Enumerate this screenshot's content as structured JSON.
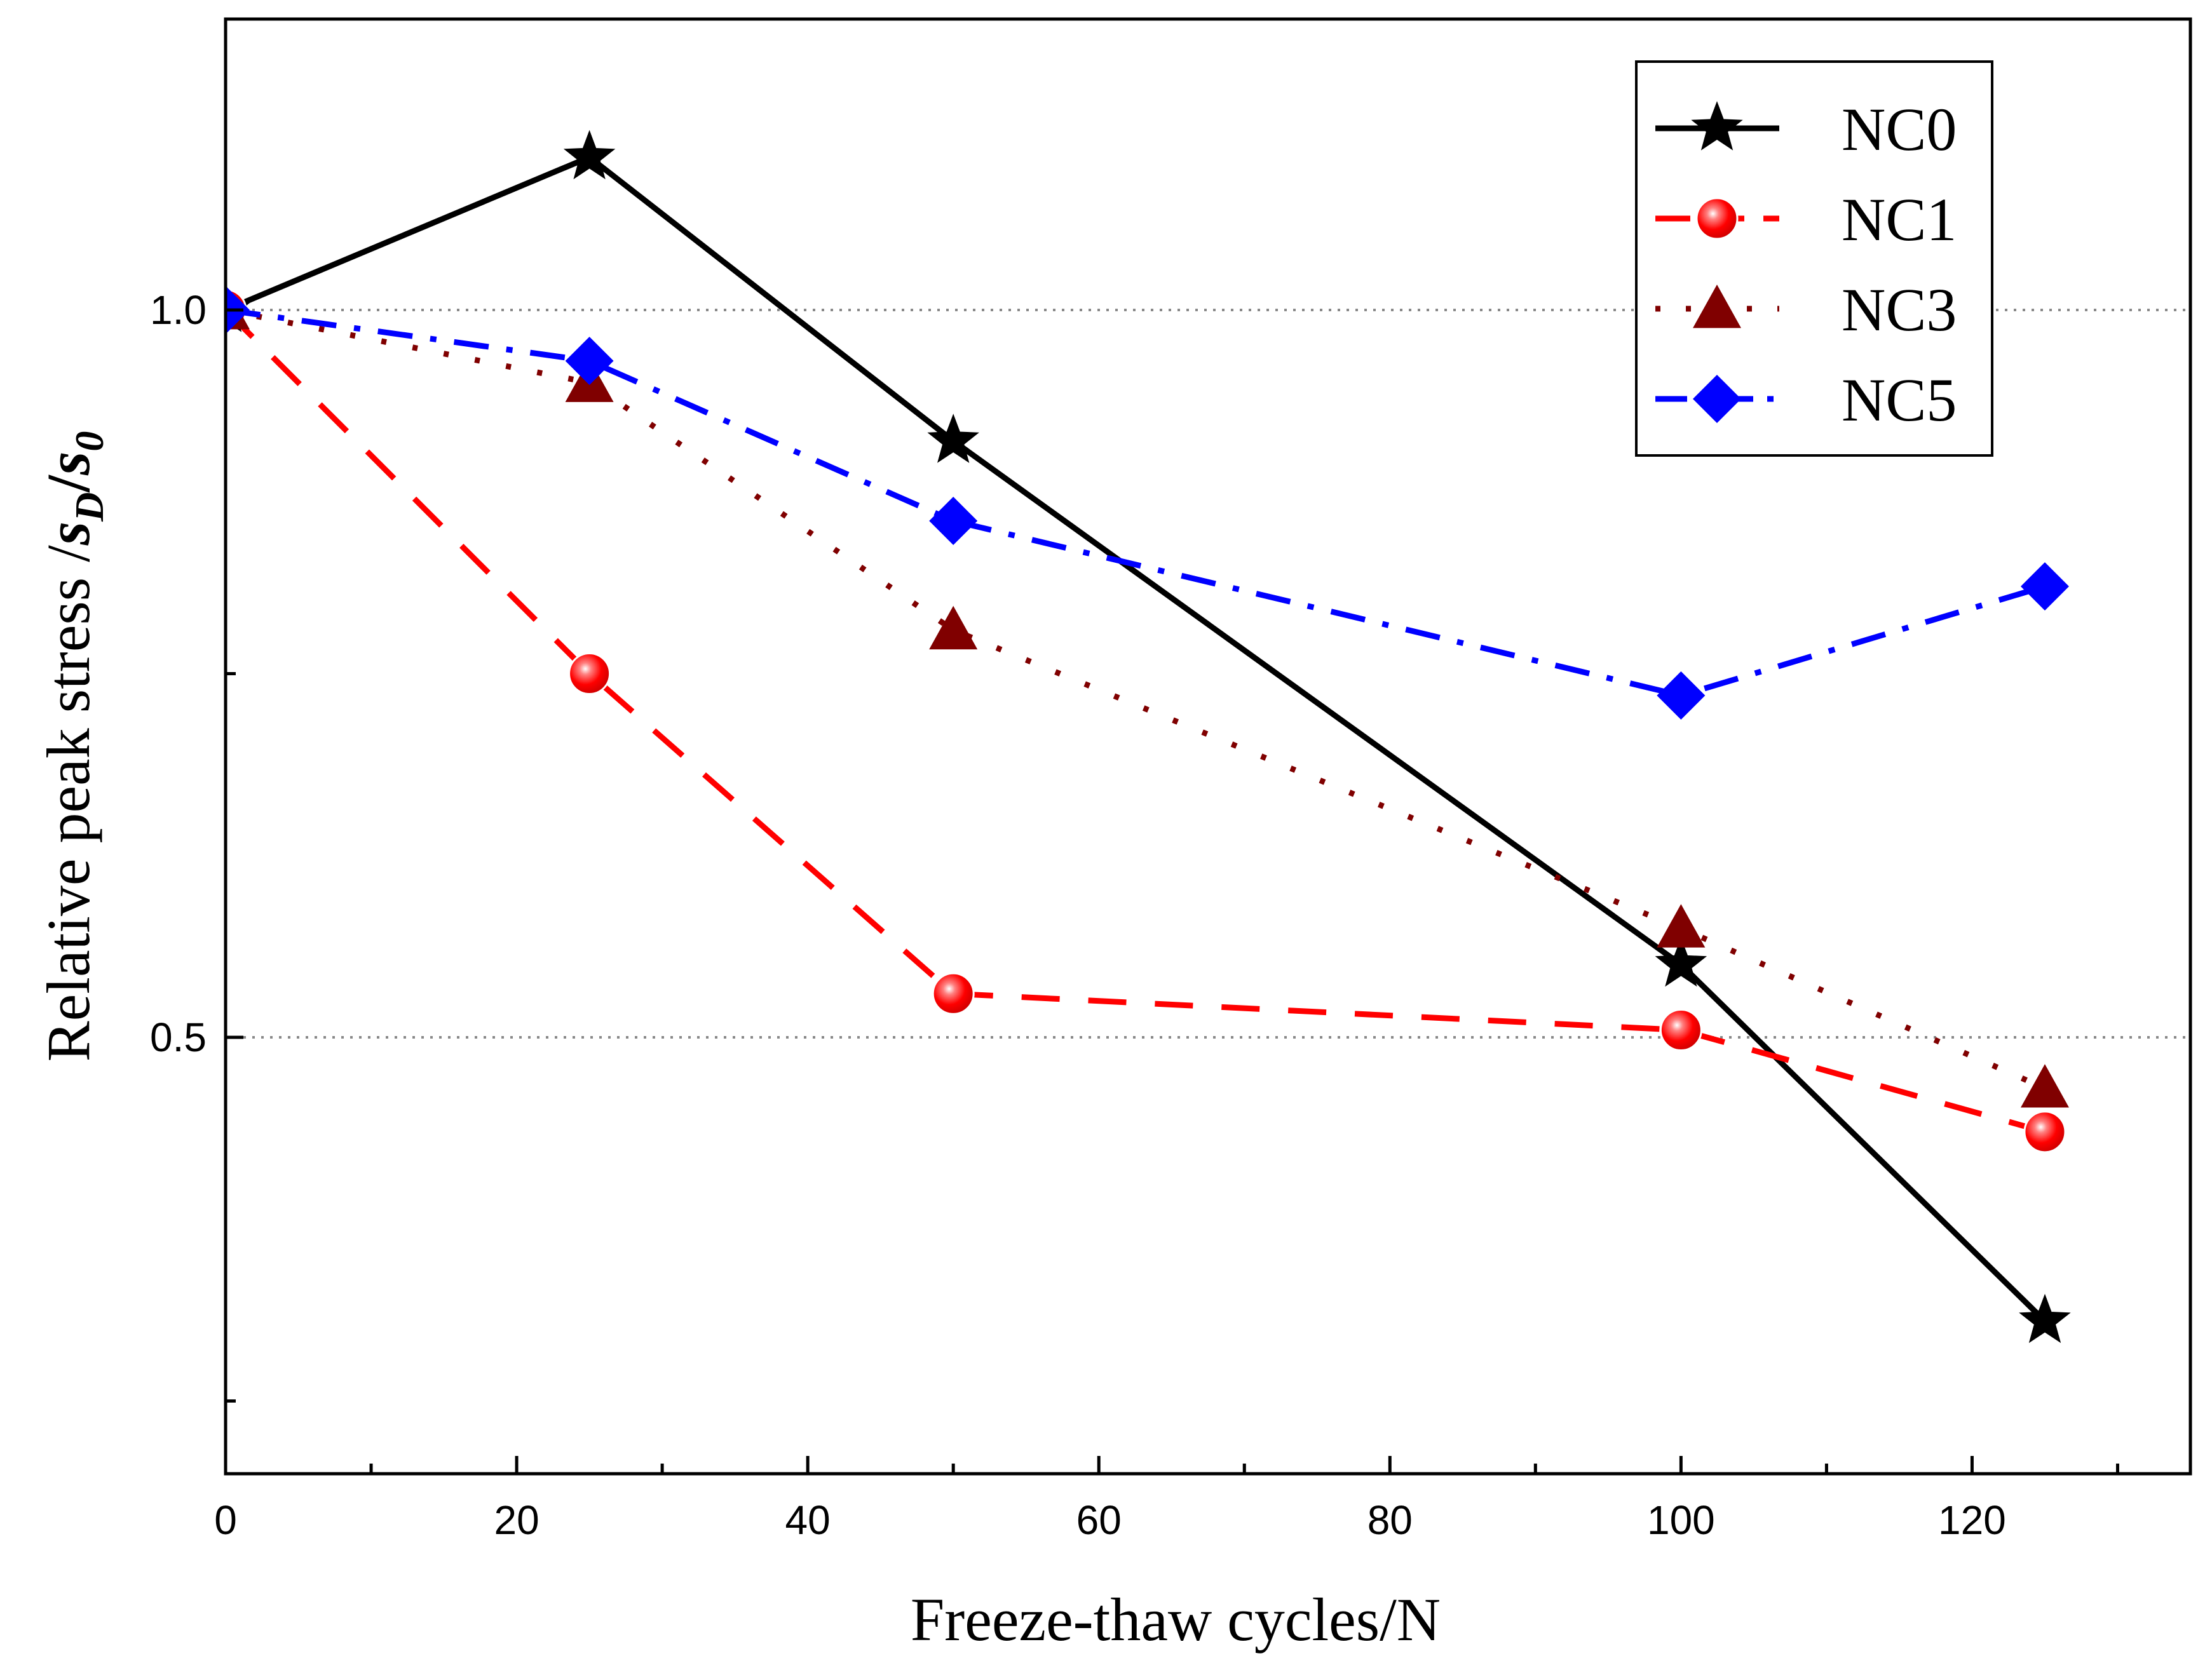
{
  "chart_data": {
    "type": "line",
    "xlabel": "Freeze-thaw cycles/N",
    "ylabel": {
      "prefix": "Relative peak stress  /",
      "s1": "s",
      "sub1": "D",
      "sep": "/",
      "s2": "s",
      "sub2": "0"
    },
    "xlim": [
      0,
      135
    ],
    "ylim": [
      0.2,
      1.2
    ],
    "x_ticks": [
      0,
      20,
      40,
      60,
      80,
      100,
      120
    ],
    "x_tick_labels": [
      "0",
      "20",
      "40",
      "60",
      "80",
      "100",
      "120"
    ],
    "x_minor_ticks": [
      10,
      30,
      50,
      70,
      90,
      110,
      130
    ],
    "y_ticks": [
      0.5,
      1.0
    ],
    "y_tick_labels": [
      "0.5",
      "1.0"
    ],
    "y_minor_ticks": [
      0.25,
      0.75
    ],
    "gridlines_y": [
      0.5,
      1.0
    ],
    "legend_position": "top-right",
    "x": [
      0,
      25,
      50,
      100,
      125
    ],
    "series": [
      {
        "name": "NC0",
        "values": [
          1.0,
          1.105,
          0.91,
          0.55,
          0.305
        ],
        "color": "#000000",
        "marker": "star",
        "dash": "solid"
      },
      {
        "name": "NC1",
        "values": [
          1.0,
          0.75,
          0.53,
          0.505,
          0.435
        ],
        "color": "#ff0000",
        "marker": "circle",
        "dash": "dash"
      },
      {
        "name": "NC3",
        "values": [
          1.0,
          0.95,
          0.78,
          0.575,
          0.465
        ],
        "color": "#800000",
        "marker": "triangle",
        "dash": "dot"
      },
      {
        "name": "NC5",
        "values": [
          1.0,
          0.965,
          0.855,
          0.735,
          0.81
        ],
        "color": "#0000ff",
        "marker": "diamond",
        "dash": "dashdot"
      }
    ]
  }
}
